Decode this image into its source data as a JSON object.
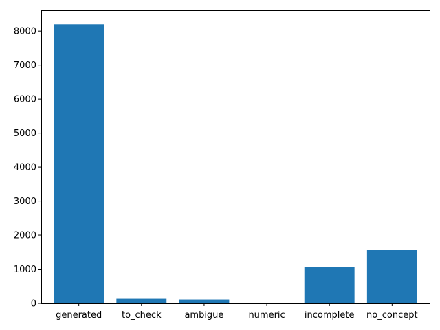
{
  "chart_data": {
    "type": "bar",
    "title": "",
    "xlabel": "",
    "ylabel": "",
    "categories": [
      "generated",
      "to_check",
      "ambigue",
      "numeric",
      "incomplete",
      "no_concept"
    ],
    "values": [
      8200,
      130,
      110,
      5,
      1060,
      1560
    ],
    "ylim": [
      0,
      8610
    ],
    "yticks": [
      0,
      1000,
      2000,
      3000,
      4000,
      5000,
      6000,
      7000,
      8000
    ],
    "grid": false,
    "legend": "none",
    "bar_color": "#1f77b4"
  }
}
